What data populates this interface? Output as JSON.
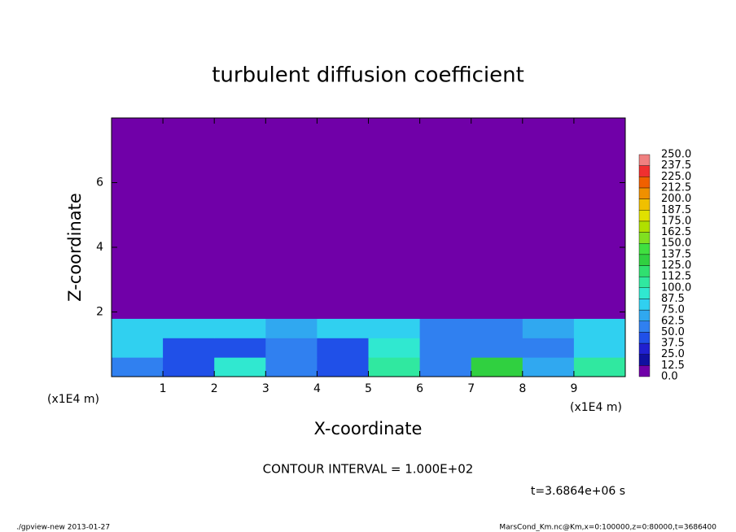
{
  "chart_data": {
    "type": "contour",
    "title": "turbulent diffusion coefficient",
    "x_label": "X-coordinate",
    "y_label": "Z-coordinate",
    "x_unit": "(x1E4 m)",
    "y_unit": "(x1E4 m)",
    "xlim": [
      0,
      10
    ],
    "ylim": [
      0,
      8
    ],
    "xticks": [
      1,
      2,
      3,
      4,
      5,
      6,
      7,
      8,
      9
    ],
    "yticks": [
      2,
      4,
      6
    ],
    "xbins": [
      0,
      1,
      2,
      3,
      4,
      5,
      6,
      7,
      8,
      9,
      10
    ],
    "zbins": [
      0,
      0.6,
      1.2,
      1.8,
      8
    ],
    "values": [
      [
        60,
        45,
        90,
        50,
        45,
        100,
        60,
        130,
        70,
        100
      ],
      [
        75,
        45,
        40,
        50,
        40,
        95,
        50,
        50,
        60,
        80
      ],
      [
        75,
        80,
        75,
        70,
        75,
        80,
        60,
        60,
        70,
        75
      ],
      [
        0,
        0,
        0,
        0,
        0,
        0,
        0,
        0,
        0,
        0
      ]
    ],
    "colorbar": {
      "ticks": [
        {
          "value": 0,
          "label": "0.0"
        },
        {
          "value": 12.5,
          "label": "12.5"
        },
        {
          "value": 25,
          "label": "25.0"
        },
        {
          "value": 37.5,
          "label": "37.5"
        },
        {
          "value": 50,
          "label": "50.0"
        },
        {
          "value": 62.5,
          "label": "62.5"
        },
        {
          "value": 75,
          "label": "75.0"
        },
        {
          "value": 87.5,
          "label": "87.5"
        },
        {
          "value": 100,
          "label": "100.0"
        },
        {
          "value": 112.5,
          "label": "112.5"
        },
        {
          "value": 125,
          "label": "125.0"
        },
        {
          "value": 137.5,
          "label": "137.5"
        },
        {
          "value": 150,
          "label": "150.0"
        },
        {
          "value": 162.5,
          "label": "162.5"
        },
        {
          "value": 175,
          "label": "175.0"
        },
        {
          "value": 187.5,
          "label": "187.5"
        },
        {
          "value": 200,
          "label": "200.0"
        },
        {
          "value": 212.5,
          "label": "212.5"
        },
        {
          "value": 225,
          "label": "225.0"
        },
        {
          "value": 237.5,
          "label": "237.5"
        },
        {
          "value": 250,
          "label": "250.0"
        }
      ],
      "colors": [
        "#7000a8",
        "#1010a0",
        "#2020d0",
        "#2050e8",
        "#3080f0",
        "#30a8f0",
        "#30d0f0",
        "#30e8d0",
        "#30e8a0",
        "#30e070",
        "#30d040",
        "#40e040",
        "#80e020",
        "#b0e000",
        "#e0e000",
        "#f0c000",
        "#f09000",
        "#f06000",
        "#f03030",
        "#f08080"
      ]
    },
    "contour_note": "CONTOUR INTERVAL = 1.000E+02",
    "time_label": "t=3.6864e+06 s",
    "footer_left": "./gpview-new  2013-01-27",
    "footer_right": "MarsCond_Km.nc@Km,x=0:100000,z=0:80000,t=3686400"
  }
}
